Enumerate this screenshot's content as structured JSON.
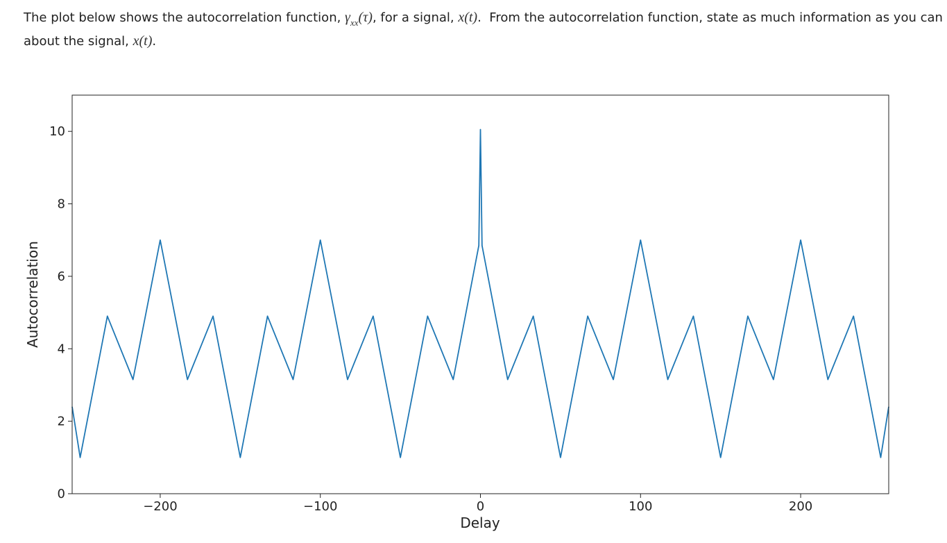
{
  "question": {
    "line1": [
      "The plot below shows the autocorrelation function, ",
      "γ",
      "xx",
      "(τ)",
      ", for a signal, ",
      "x(t)",
      ".",
      "From the autocorrelation function, state as much information as you can"
    ],
    "line2": [
      "about the signal, ",
      "x(t)",
      "."
    ]
  },
  "chart_data": {
    "type": "line",
    "xlabel": "Delay",
    "ylabel": "Autocorrelation",
    "x": [
      -255,
      -250,
      -233,
      -217,
      -200,
      -183,
      -167,
      -150,
      -133,
      -117,
      -100,
      -83,
      -67,
      -50,
      -33,
      -17,
      -1,
      0,
      1,
      17,
      33,
      50,
      67,
      83,
      100,
      117,
      133,
      150,
      167,
      183,
      200,
      217,
      233,
      250,
      255
    ],
    "series": [
      {
        "name": "Autocorrelation",
        "color": "#1f77b4",
        "values": [
          2.4,
          1,
          4.9,
          3.15,
          7,
          3.15,
          4.9,
          1,
          4.9,
          3.15,
          7,
          3.15,
          4.9,
          1,
          4.9,
          3.15,
          6.85,
          10.05,
          6.85,
          3.15,
          4.9,
          1,
          4.9,
          3.15,
          7,
          3.15,
          4.9,
          1,
          4.9,
          3.15,
          7,
          3.15,
          4.9,
          1,
          2.4
        ]
      }
    ],
    "xlim": [
      -255,
      255
    ],
    "ylim": [
      0,
      11
    ],
    "xticks": [
      {
        "value": -200,
        "label": "−200"
      },
      {
        "value": -100,
        "label": "−100"
      },
      0,
      100,
      200
    ],
    "yticks": [
      0,
      2,
      4,
      6,
      8,
      10
    ],
    "grid": false
  }
}
